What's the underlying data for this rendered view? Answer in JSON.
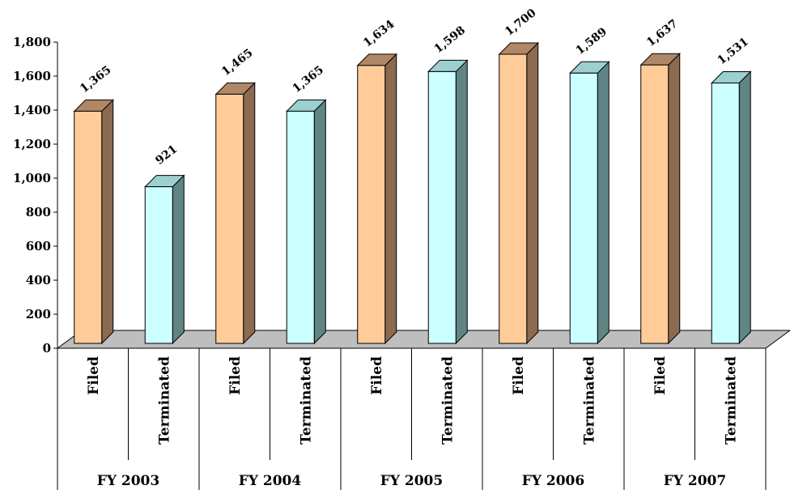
{
  "chart_data": {
    "type": "bar",
    "groups": [
      "FY 2003",
      "FY 2004",
      "FY 2005",
      "FY 2006",
      "FY 2007"
    ],
    "subcategories": [
      "Filed",
      "Terminated"
    ],
    "series": [
      {
        "values": [
          1365,
          1465,
          1634,
          1700,
          1637
        ]
      },
      {
        "values": [
          921,
          1365,
          1598,
          1589,
          1531
        ]
      }
    ],
    "value_labels": [
      [
        "1,365",
        "921"
      ],
      [
        "1,465",
        "1,365"
      ],
      [
        "1,634",
        "1,598"
      ],
      [
        "1,700",
        "1,589"
      ],
      [
        "1,637",
        "1,531"
      ]
    ],
    "yticks": [
      0,
      200,
      400,
      600,
      800,
      1000,
      1200,
      1400,
      1600,
      1800
    ],
    "ytick_labels": [
      "0",
      "200",
      "400",
      "600",
      "800",
      "1,000",
      "1,200",
      "1,400",
      "1,600",
      "1,800"
    ],
    "ylim": [
      0,
      1800
    ],
    "grid": false,
    "three_d": true,
    "colors": {
      "filed_front": "#FFCC99",
      "filed_side": "#8C6A4F",
      "filed_top": "#B08868",
      "term_front": "#CCFFFF",
      "term_side": "#5F8585",
      "term_top": "#9CCFCF",
      "floor": "#BEBEBE"
    }
  }
}
